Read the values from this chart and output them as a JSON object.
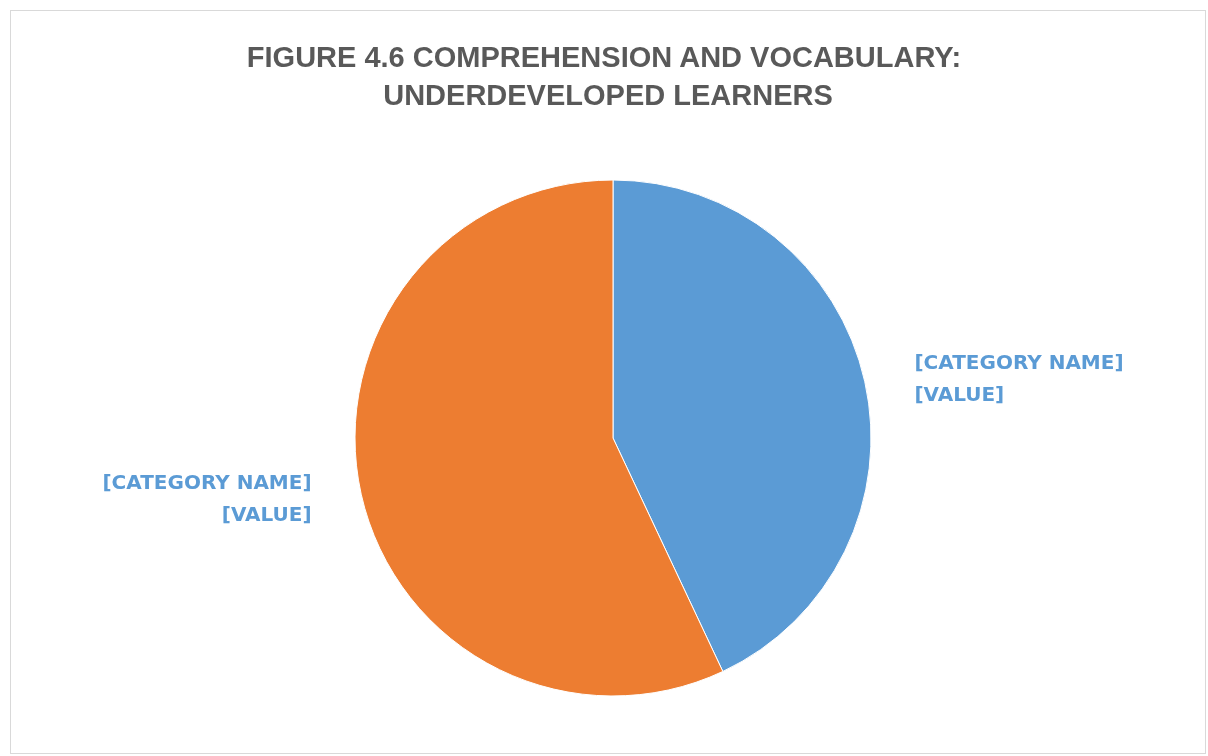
{
  "chart_data": {
    "type": "pie",
    "title": "FIGURE 4.6 COMPREHENSION AND VOCABULARY: UNDERDEVELOPED LEARNERS",
    "categories": [
      "[CATEGORY NAME]",
      "[CATEGORY NAME]"
    ],
    "values": [
      43,
      57
    ],
    "value_labels": [
      "[VALUE]",
      "[VALUE]"
    ],
    "colors": [
      "#5b9bd5",
      "#ed7d31"
    ],
    "legend": false
  }
}
